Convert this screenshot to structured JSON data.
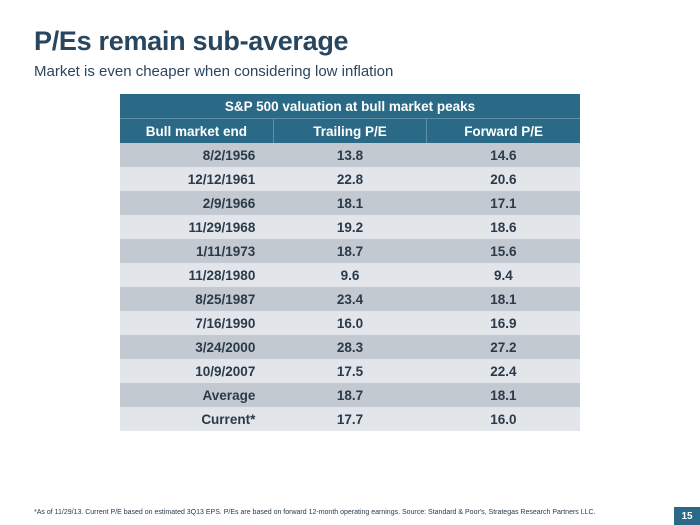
{
  "colors": {
    "title": "#29465f",
    "subtitle": "#29465f",
    "header_bg": "#2a6a86",
    "header_text": "#ffffff",
    "row_alt_a": "#c3c9d0",
    "row_alt_b": "#e2e5e9",
    "body_text": "#2b3a4a",
    "pagenum_bg": "#2a6a86",
    "pagenum_text": "#ffffff"
  },
  "title": "P/Es remain sub-average",
  "subtitle": "Market is even cheaper when considering low inflation",
  "table": {
    "caption": "S&P 500 valuation at bull market peaks",
    "columns": [
      "Bull market end",
      "Trailing P/E",
      "Forward P/E"
    ],
    "rows": [
      [
        "8/2/1956",
        "13.8",
        "14.6"
      ],
      [
        "12/12/1961",
        "22.8",
        "20.6"
      ],
      [
        "2/9/1966",
        "18.1",
        "17.1"
      ],
      [
        "11/29/1968",
        "19.2",
        "18.6"
      ],
      [
        "1/11/1973",
        "18.7",
        "15.6"
      ],
      [
        "11/28/1980",
        "9.6",
        "9.4"
      ],
      [
        "8/25/1987",
        "23.4",
        "18.1"
      ],
      [
        "7/16/1990",
        "16.0",
        "16.9"
      ],
      [
        "3/24/2000",
        "28.3",
        "27.2"
      ],
      [
        "10/9/2007",
        "17.5",
        "22.4"
      ]
    ],
    "summary": [
      [
        "Average",
        "18.7",
        "18.1"
      ],
      [
        "Current*",
        "17.7",
        "16.0"
      ]
    ]
  },
  "footnote": "*As of 11/29/13. Current P/E based on estimated 3Q13 EPS. P/Es are based on forward 12-month operating earnings. Source: Standard & Poor's, Strategas Research Partners LLC.",
  "page_number": "15"
}
